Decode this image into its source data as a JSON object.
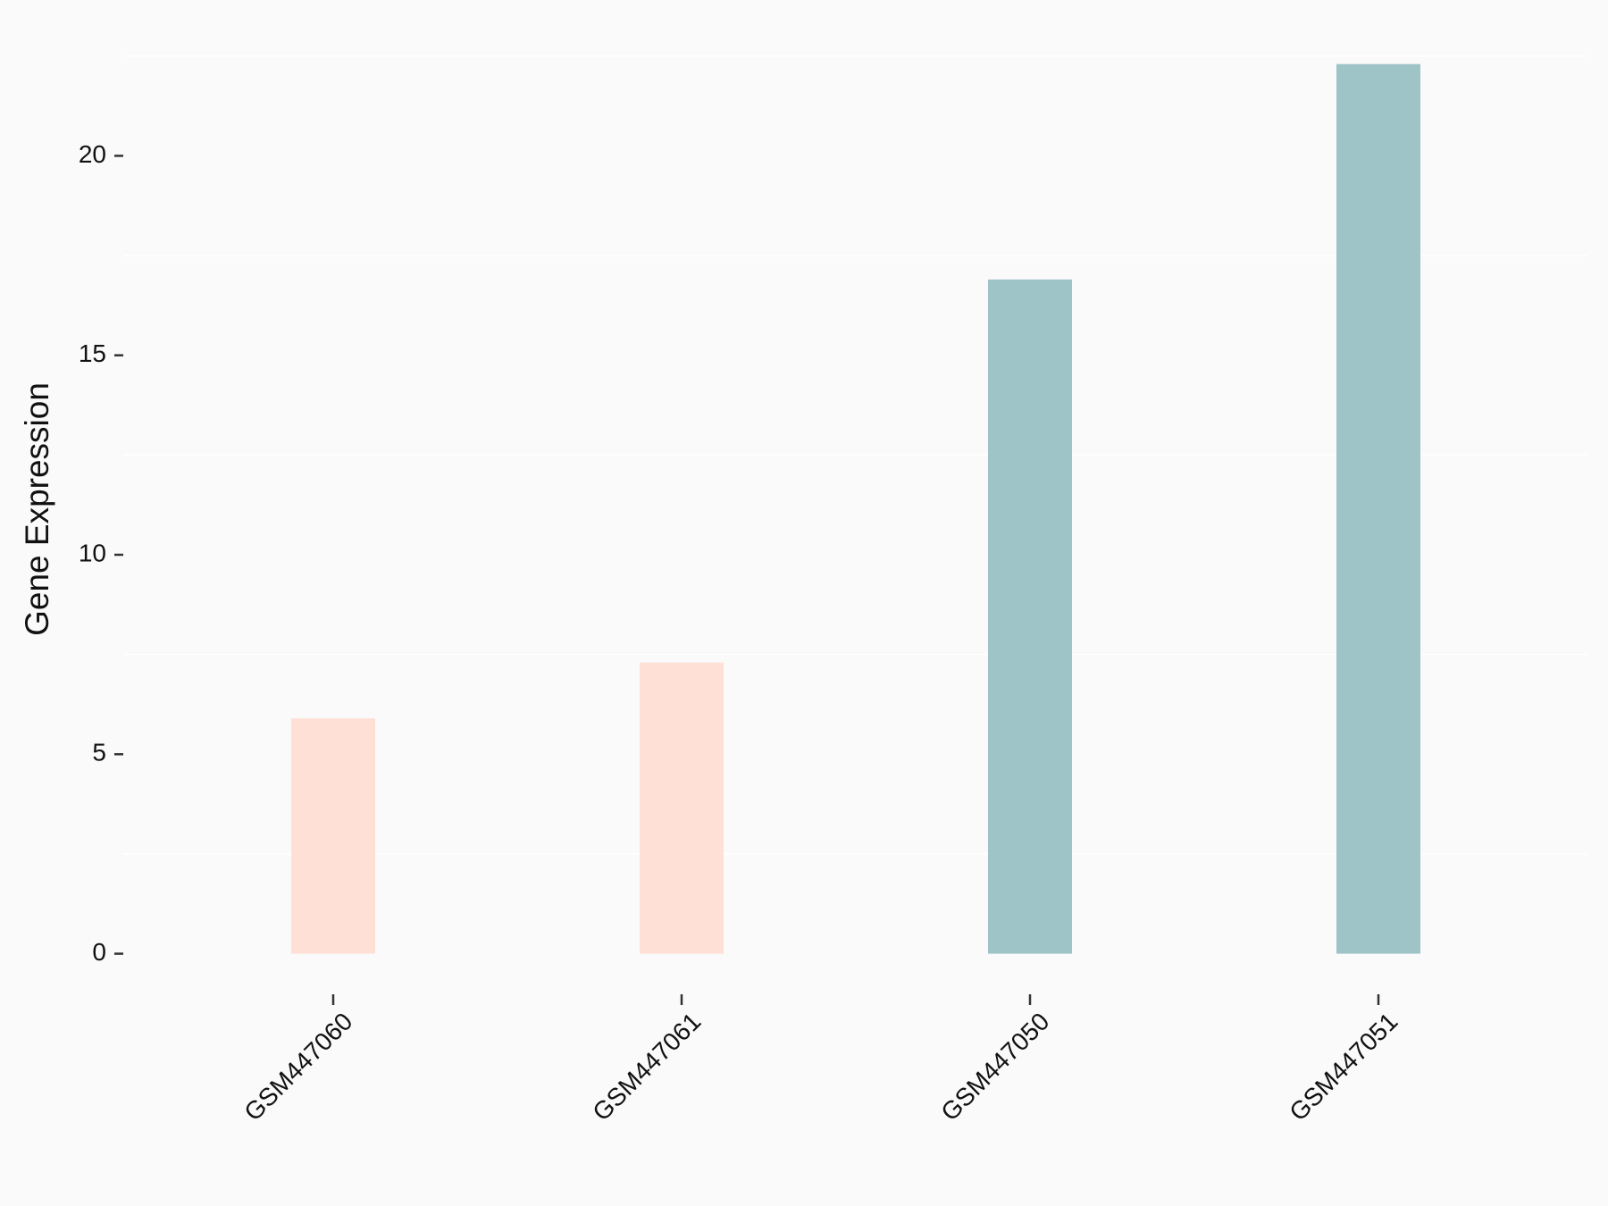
{
  "chart_data": {
    "type": "bar",
    "y_label": "Gene Expression",
    "categories": [
      "GSM447060",
      "GSM447061",
      "GSM447050",
      "GSM447051"
    ],
    "values": [
      5.9,
      7.3,
      16.9,
      22.3
    ],
    "colors": [
      "#ffe0d6",
      "#ffe0d6",
      "#9ec4c8",
      "#9ec4c8"
    ],
    "ylim": [
      -1.1,
      23.4
    ],
    "yticks": [
      0,
      5,
      10,
      15,
      20
    ],
    "minor_grid": [
      2.5,
      7.5,
      12.5,
      17.5,
      22.5
    ]
  }
}
